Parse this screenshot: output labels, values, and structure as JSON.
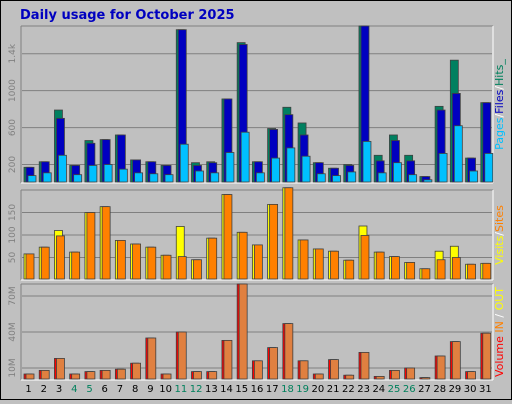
{
  "title": "Daily usage for October 2025",
  "chart_data": [
    {
      "type": "bar",
      "panel": "top",
      "categories": [
        "1",
        "2",
        "3",
        "4",
        "5",
        "6",
        "7",
        "8",
        "9",
        "10",
        "11",
        "12",
        "13",
        "14",
        "15",
        "16",
        "17",
        "18",
        "19",
        "20",
        "21",
        "22",
        "23",
        "24",
        "25",
        "26",
        "27",
        "28",
        "29",
        "30",
        "31"
      ],
      "weekend_categories": [
        "4",
        "5",
        "11",
        "12",
        "18",
        "19",
        "25",
        "26"
      ],
      "ytick_labels": [
        "200",
        "600",
        "1000",
        "1.4k"
      ],
      "yticks": [
        200,
        600,
        1000,
        1400
      ],
      "ylim": [
        0,
        1700
      ],
      "right_label": [
        {
          "text": "Pages",
          "color": "#00c0ff"
        },
        {
          "text": "/",
          "color": "#ffffff"
        },
        {
          "text": "Files",
          "color": "#0000c0"
        },
        {
          "text": "/",
          "color": "#ffffff"
        },
        {
          "text": "Hits",
          "color": "#00805c"
        }
      ],
      "right_label_tail": "_",
      "series": [
        {
          "name": "Hits",
          "color": "#008060",
          "values": [
            170,
            230,
            790,
            190,
            460,
            470,
            520,
            250,
            230,
            190,
            1660,
            220,
            230,
            910,
            1520,
            230,
            590,
            820,
            650,
            220,
            160,
            200,
            1700,
            300,
            520,
            300,
            70,
            830,
            1330,
            270,
            870
          ]
        },
        {
          "name": "Files",
          "color": "#0000c0",
          "values": [
            170,
            230,
            700,
            190,
            430,
            470,
            520,
            250,
            230,
            190,
            1660,
            190,
            220,
            910,
            1500,
            230,
            580,
            740,
            520,
            220,
            160,
            190,
            1700,
            240,
            460,
            240,
            70,
            790,
            970,
            270,
            870
          ]
        },
        {
          "name": "Pages",
          "color": "#00c0ff",
          "values": [
            80,
            110,
            300,
            90,
            190,
            200,
            150,
            110,
            100,
            90,
            420,
            130,
            110,
            330,
            550,
            110,
            270,
            380,
            290,
            100,
            80,
            120,
            450,
            110,
            220,
            90,
            35,
            320,
            620,
            130,
            320
          ]
        }
      ]
    },
    {
      "type": "bar",
      "panel": "middle",
      "categories": [
        "1",
        "2",
        "3",
        "4",
        "5",
        "6",
        "7",
        "8",
        "9",
        "10",
        "11",
        "12",
        "13",
        "14",
        "15",
        "16",
        "17",
        "18",
        "19",
        "20",
        "21",
        "22",
        "23",
        "24",
        "25",
        "26",
        "27",
        "28",
        "29",
        "30",
        "31"
      ],
      "ytick_labels": [
        "50",
        "100",
        "150"
      ],
      "yticks": [
        50,
        100,
        150
      ],
      "ylim": [
        0,
        200
      ],
      "right_label": [
        {
          "text": "Visits",
          "color": "#ffff00"
        },
        {
          "text": "/",
          "color": "#ffffff"
        },
        {
          "text": "Sites",
          "color": "#ff8000"
        }
      ],
      "series": [
        {
          "name": "Visits",
          "color": "#ffff00",
          "values": [
            58,
            73,
            110,
            62,
            150,
            163,
            88,
            80,
            73,
            55,
            119,
            45,
            93,
            190,
            106,
            78,
            168,
            205,
            89,
            69,
            64,
            44,
            120,
            62,
            52,
            39,
            25,
            64,
            75,
            35,
            37
          ]
        },
        {
          "name": "Sites",
          "color": "#ff8000",
          "values": [
            58,
            73,
            98,
            62,
            150,
            163,
            88,
            80,
            73,
            55,
            52,
            45,
            93,
            190,
            106,
            78,
            168,
            205,
            89,
            69,
            64,
            44,
            99,
            62,
            52,
            39,
            25,
            45,
            50,
            35,
            37
          ]
        }
      ]
    },
    {
      "type": "bar",
      "panel": "bottom",
      "categories": [
        "1",
        "2",
        "3",
        "4",
        "5",
        "6",
        "7",
        "8",
        "9",
        "10",
        "11",
        "12",
        "13",
        "14",
        "15",
        "16",
        "17",
        "18",
        "19",
        "20",
        "21",
        "22",
        "23",
        "24",
        "25",
        "26",
        "27",
        "28",
        "29",
        "30",
        "31"
      ],
      "ytick_labels": [
        "10M",
        "40M",
        "70M"
      ],
      "yticks": [
        10,
        40,
        70
      ],
      "ylim": [
        0,
        80
      ],
      "right_label": [
        {
          "text": "Volume",
          "color": "#ff0000"
        },
        {
          "text": " ",
          "color": "#ffffff"
        },
        {
          "text": "IN",
          "color": "#ff8000"
        },
        {
          "text": " / ",
          "color": "#ffffff"
        },
        {
          "text": "OUT",
          "color": "#ffff00"
        }
      ],
      "series": [
        {
          "name": "Volume",
          "color": "#ff0000",
          "values": [
            5,
            8,
            18,
            5,
            7,
            8,
            9,
            14,
            35,
            5,
            40,
            7,
            7,
            33,
            80,
            16,
            27,
            47,
            16,
            5,
            17,
            4,
            23,
            3,
            8,
            10,
            2,
            20,
            32,
            7,
            39
          ]
        },
        {
          "name": "IN",
          "color": "#e08040",
          "values": [
            5,
            8,
            18,
            5,
            7,
            8,
            9,
            14,
            35,
            5,
            40,
            7,
            7,
            33,
            80,
            16,
            27,
            47,
            16,
            5,
            17,
            4,
            23,
            3,
            8,
            10,
            2,
            20,
            32,
            7,
            39
          ]
        }
      ]
    }
  ]
}
